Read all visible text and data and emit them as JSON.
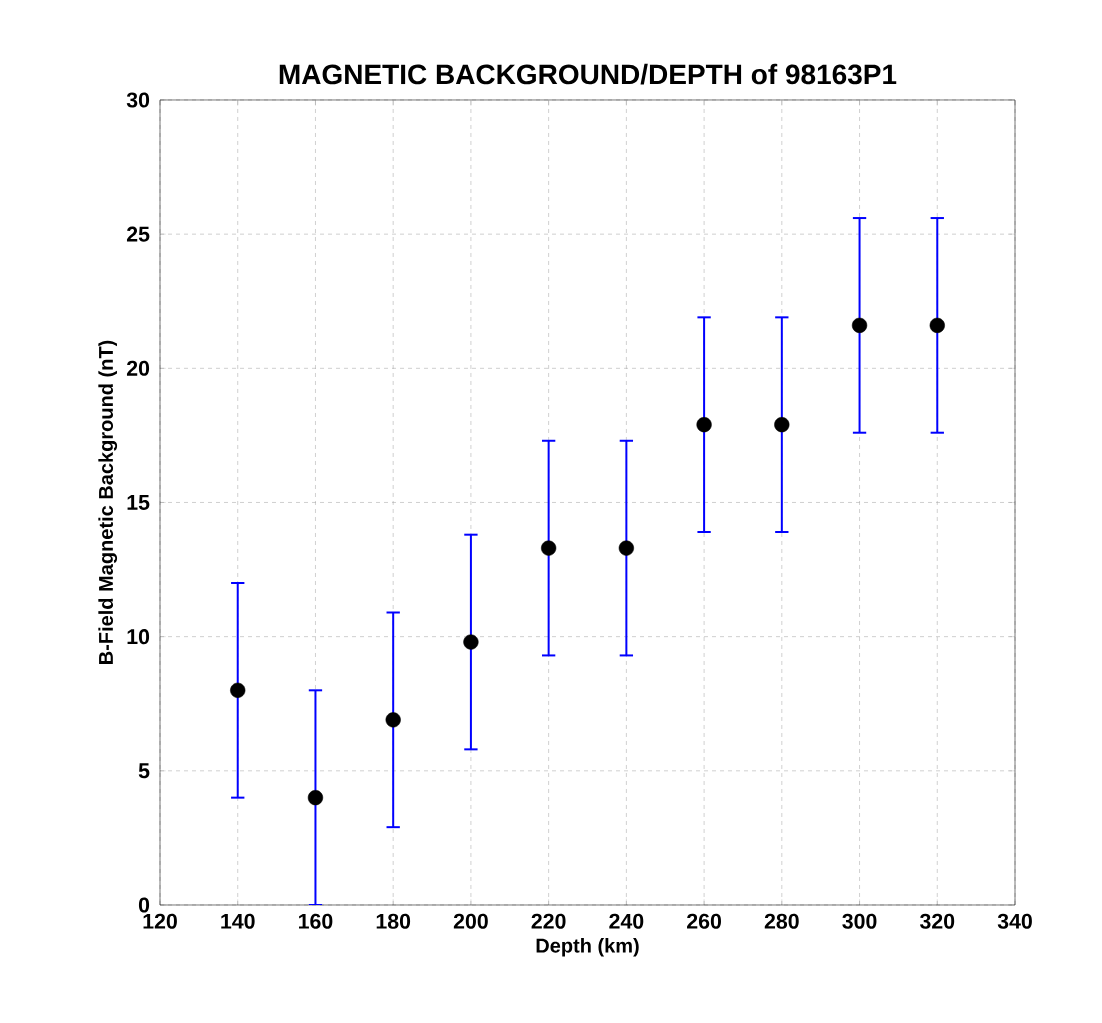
{
  "chart_data": {
    "type": "scatter",
    "title": "MAGNETIC BACKGROUND/DEPTH of 98163P1",
    "xlabel": "Depth (km)",
    "ylabel": "B-Field Magnetic Background (nT)",
    "x": [
      140,
      160,
      180,
      200,
      220,
      240,
      260,
      280,
      300,
      320
    ],
    "values": [
      8.0,
      4.0,
      6.9,
      9.8,
      13.3,
      13.3,
      17.9,
      17.9,
      21.6,
      21.6
    ],
    "errors": [
      4,
      4,
      4,
      4,
      4,
      4,
      4,
      4,
      4,
      4
    ],
    "color": "#000000",
    "marker": "circle",
    "grid": true,
    "xlim": [
      120,
      340
    ],
    "xticks": [
      120,
      140,
      160,
      180,
      200,
      220,
      240,
      260,
      280,
      300,
      320,
      340
    ],
    "ylim": [
      0,
      30
    ],
    "yticks": [
      0,
      5,
      10,
      15,
      20,
      25,
      30
    ]
  }
}
